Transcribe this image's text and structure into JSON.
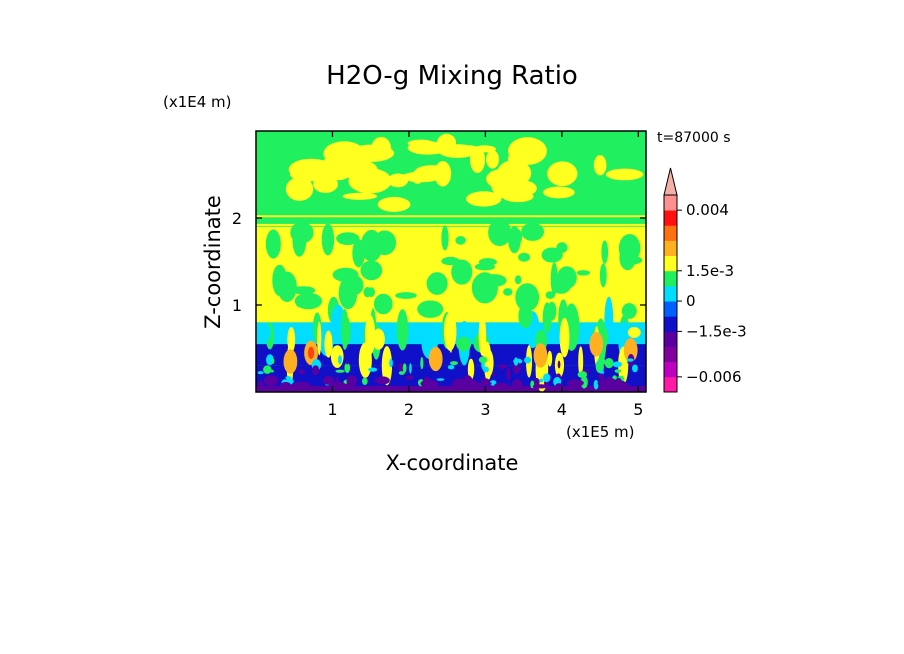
{
  "chart_data": {
    "type": "heatmap",
    "title": "H2O-g Mixing Ratio",
    "xlabel": "X-coordinate",
    "ylabel": "Z-coordinate",
    "x_unit": "(x1E5 m)",
    "y_unit": "(x1E4 m)",
    "time_label": "t=87000 s",
    "xlim": [
      0.0,
      5.1
    ],
    "ylim": [
      0.0,
      3.0
    ],
    "x_ticks": [
      1,
      2,
      3,
      4,
      5
    ],
    "x_tick_labels": [
      "1",
      "2",
      "3",
      "4",
      "5"
    ],
    "y_ticks": [
      1,
      2
    ],
    "y_tick_labels": [
      "1",
      "2"
    ],
    "colorbar": {
      "levels": [
        -0.008,
        -0.006,
        -0.004,
        -0.0025,
        -0.0015,
        -0.00075,
        0,
        0.00075,
        0.0015,
        0.002,
        0.0025,
        0.003,
        0.004
      ],
      "colors": [
        "#ff1aa8",
        "#c000c0",
        "#8000a0",
        "#5a00a0",
        "#1010c8",
        "#0060ff",
        "#00ddff",
        "#20f060",
        "#ffff20",
        "#ffb020",
        "#ff7010",
        "#ff1010",
        "#ff9090"
      ],
      "extend_top_color": "#f4b0a8",
      "labels": [
        {
          "text": "0.004",
          "value": 0.004
        },
        {
          "text": "1.5e-3",
          "value": 0.0015
        },
        {
          "text": "0",
          "value": 0
        },
        {
          "text": "−1.5e-3",
          "value": -0.0015
        },
        {
          "text": "−0.006",
          "value": -0.006
        }
      ]
    },
    "field_bands": [
      {
        "z_range": [
          0.0,
          0.08
        ],
        "category": "purple"
      },
      {
        "z_range": [
          0.08,
          0.3
        ],
        "category": "blue"
      },
      {
        "z_range": [
          0.3,
          0.55
        ],
        "category": "mixed"
      },
      {
        "z_range": [
          0.55,
          0.8
        ],
        "category": "cyan"
      },
      {
        "z_range": [
          0.8,
          1.9
        ],
        "category": "yellow"
      },
      {
        "z_range": [
          1.9,
          2.05
        ],
        "category": "stripes"
      },
      {
        "z_range": [
          2.05,
          3.0
        ],
        "category": "green"
      }
    ]
  }
}
